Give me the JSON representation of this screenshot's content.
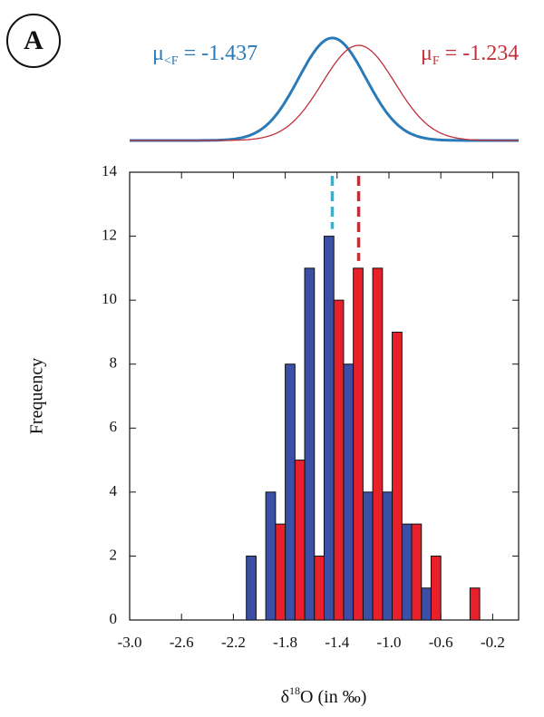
{
  "chart_data": {
    "type": "histogram",
    "panel_label": "A",
    "xlabel": {
      "symbol": "δ",
      "superscript": "18",
      "rest": "O (in ‰)"
    },
    "ylabel": "Frequency",
    "bins": [
      -2.1,
      -1.95,
      -1.8,
      -1.65,
      -1.5,
      -1.35,
      -1.2,
      -1.05,
      -0.9,
      -0.75,
      -0.6,
      -0.45,
      -0.3
    ],
    "series": [
      {
        "color": "#3b4fa6",
        "values": [
          2,
          4,
          8,
          11,
          12,
          8,
          4,
          4,
          3,
          1,
          0,
          0
        ]
      },
      {
        "color": "#e8202a",
        "values": [
          0,
          3,
          5,
          2,
          10,
          11,
          11,
          9,
          3,
          2,
          0,
          1
        ]
      }
    ],
    "annotations": [
      {
        "symbol": "μ",
        "subscript": "<F",
        "relation": " = ",
        "value": -1.437,
        "std": 0.26,
        "color": "#2a7ab8",
        "line_color": "#29b6d8",
        "curve_width": 3
      },
      {
        "symbol": "μ",
        "subscript": "F",
        "relation": " = ",
        "value": -1.234,
        "std": 0.28,
        "color": "#c0303a",
        "line_color": "#c0303a",
        "curve_width": 1.3
      }
    ],
    "xlim": [
      -3.0,
      0.0
    ],
    "ylim": [
      0,
      14
    ],
    "xticks": [
      {
        "value": -3.0,
        "label": "-3.0"
      },
      {
        "value": -2.6,
        "label": "-2.6"
      },
      {
        "value": -2.2,
        "label": "-2.2"
      },
      {
        "value": -1.8,
        "label": "-1.8"
      },
      {
        "value": -1.4,
        "label": "-1.4"
      },
      {
        "value": -1.0,
        "label": "-1.0"
      },
      {
        "value": -0.6,
        "label": "-0.6"
      },
      {
        "value": -0.2,
        "label": "-0.2"
      }
    ],
    "yticks": [
      0,
      2,
      4,
      6,
      8,
      10,
      12,
      14
    ]
  }
}
